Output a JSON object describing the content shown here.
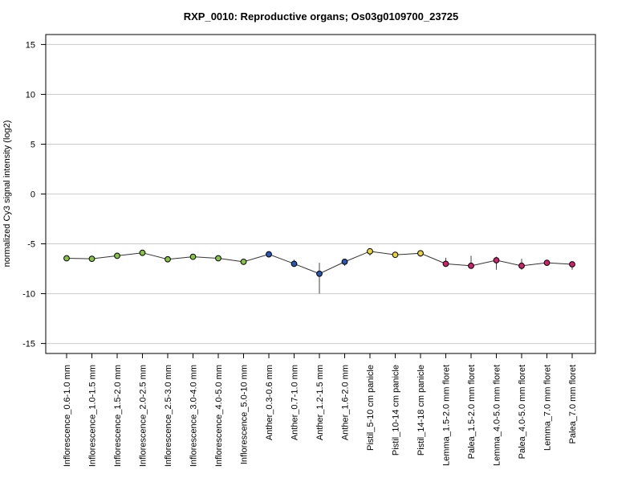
{
  "chart_data": {
    "type": "line",
    "title": "RXP_0010: Reproductive organs; Os03g0109700_23725",
    "xlabel": "",
    "ylabel": "normalized Cy3 signal intensity (log2)",
    "ylim": [
      -16,
      16
    ],
    "yticks": [
      15,
      10,
      5,
      0,
      -5,
      -10,
      -15
    ],
    "grid": true,
    "legend": "none",
    "categories": [
      "Inflorescence_0.6-1.0 mm",
      "Inflorescence_1.0-1.5 mm",
      "Inflorescence_1.5-2.0 mm",
      "Inflorescence_2.0-2.5 mm",
      "Inflorescence_2.5-3.0 mm",
      "Inflorescence_3.0-4.0 mm",
      "Inflorescence_4.0-5.0 mm",
      "Inflorescence_5.0-10 mm",
      "Anther_0.3-0.6 mm",
      "Anther_0.7-1.0 mm",
      "Anther_1.2-1.5 mm",
      "Anther_1.6-2.0 mm",
      "Pistil_5-10 cm panicle",
      "Pistil_10-14 cm panicle",
      "Pistil_14-18 cm panicle",
      "Lemma_1.5-2.0 mm floret",
      "Palea_1.5-2.0 mm floret",
      "Lemma_4.0-5.0 mm floret",
      "Palea_4.0-5.0 mm floret",
      "Lemma_7.0 mm floret",
      "Palea_7.0 mm floret"
    ],
    "series": [
      {
        "values": [
          -6.45,
          -6.5,
          -6.2,
          -5.9,
          -6.55,
          -6.3,
          -6.45,
          -6.8,
          -6.05,
          -7.0,
          -8.0,
          -6.8,
          -5.75,
          -6.1,
          -5.95,
          -7.0,
          -7.2,
          -6.65,
          -7.2,
          -6.9,
          -7.05
        ],
        "err_low": [
          -6.45,
          -6.6,
          -6.2,
          -5.9,
          -6.7,
          -6.3,
          -6.6,
          -6.9,
          -6.1,
          -7.3,
          -10.0,
          -7.2,
          -6.2,
          -6.4,
          -6.3,
          -7.3,
          -7.3,
          -7.6,
          -7.6,
          -7.1,
          -7.6
        ],
        "err_high": [
          -6.45,
          -6.4,
          -6.2,
          -5.9,
          -6.4,
          -6.3,
          -6.3,
          -6.7,
          -6.0,
          -6.6,
          -6.9,
          -6.6,
          -5.5,
          -5.9,
          -5.7,
          -6.4,
          -6.2,
          -6.3,
          -6.5,
          -6.8,
          -6.8
        ],
        "point_colors": [
          "#86c440",
          "#86c440",
          "#86c440",
          "#86c440",
          "#86c440",
          "#86c440",
          "#86c440",
          "#86c440",
          "#2457b8",
          "#2457b8",
          "#2457b8",
          "#2457b8",
          "#e6d43a",
          "#e6d43a",
          "#e6d43a",
          "#d4206a",
          "#d4206a",
          "#d4206a",
          "#d4206a",
          "#d4206a",
          "#d4206a"
        ]
      }
    ],
    "colors": {
      "line": "#333333",
      "grid": "#cccccc",
      "error_bar": "#444444"
    }
  }
}
